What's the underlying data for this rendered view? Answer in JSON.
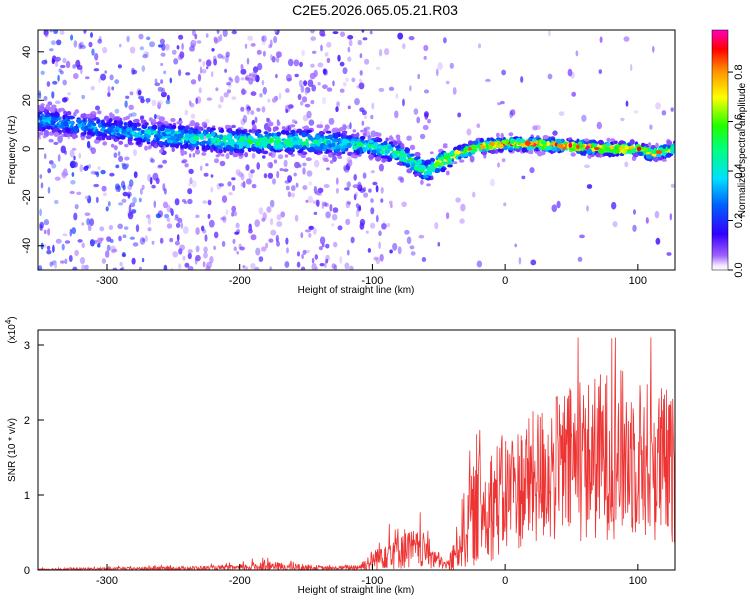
{
  "title": "C2E5.2026.065.05.21.R03",
  "chart_data": [
    {
      "type": "heatmap",
      "title": "C2E5.2026.065.05.21.R03",
      "xlabel": "Height of straight line (km)",
      "ylabel": "Frequency (Hz)",
      "xlim": [
        -352,
        128
      ],
      "ylim": [
        -50,
        49
      ],
      "xticks": [
        -300,
        -200,
        -100,
        0,
        100
      ],
      "xtick_labels": [
        "-300",
        "-200",
        "-100",
        "0",
        "100"
      ],
      "yticks": [
        40,
        20,
        0,
        -20,
        -40
      ],
      "ytick_labels": [
        "40",
        "20",
        "0",
        "-20",
        "-40"
      ],
      "colorbar": {
        "label": "Normalized spectral amplitude",
        "range": [
          0,
          0.97
        ],
        "ticks": [
          0.0,
          0.2,
          0.4,
          0.6,
          0.8
        ],
        "tick_labels": [
          "0.0",
          "0.2",
          "0.4",
          "0.6",
          "0.8"
        ],
        "colormap": [
          "#ffffff",
          "#7b00ff",
          "#0000ff",
          "#00ffff",
          "#00ff00",
          "#ffff00",
          "#ff8000",
          "#ff0000",
          "#ff00ff"
        ]
      },
      "ridge": {
        "x": [
          -350,
          -300,
          -250,
          -200,
          -150,
          -120,
          -100,
          -80,
          -60,
          -50,
          -40,
          -30,
          -20,
          0,
          20,
          50,
          80,
          100,
          110,
          128
        ],
        "freq": [
          12,
          8,
          5,
          3,
          3,
          2,
          1,
          -2,
          -9,
          -6,
          -3,
          -1,
          1,
          2,
          2,
          1,
          0,
          0,
          -2,
          0
        ],
        "amplitude": [
          0.35,
          0.35,
          0.45,
          0.55,
          0.5,
          0.45,
          0.5,
          0.55,
          0.6,
          0.7,
          0.75,
          0.8,
          0.85,
          0.9,
          0.92,
          0.92,
          0.9,
          0.85,
          0.8,
          0.75
        ]
      }
    },
    {
      "type": "line",
      "xlabel": "Height of straight line (km)",
      "ylabel": "SNR (10 * v/v)",
      "y_multiplier": "(x10",
      "y_multiplier_exp": "4",
      "y_multiplier_close": ")",
      "xlim": [
        -352,
        128
      ],
      "ylim": [
        0,
        3.2
      ],
      "xticks": [
        -300,
        -200,
        -100,
        0,
        100
      ],
      "xtick_labels": [
        "-300",
        "-200",
        "-100",
        "0",
        "100"
      ],
      "yticks": [
        0,
        1,
        2,
        3
      ],
      "ytick_labels": [
        "0",
        "1",
        "2",
        "3"
      ],
      "color": "#ee3333",
      "envelope": {
        "x": [
          -352,
          -260,
          -200,
          -185,
          -150,
          -130,
          -110,
          -100,
          -90,
          -80,
          -70,
          -60,
          -50,
          -45,
          -40,
          -35,
          -30,
          -20,
          -10,
          0,
          10,
          20,
          30,
          40,
          50,
          60,
          70,
          80,
          90,
          100,
          110,
          120,
          128
        ],
        "mean": [
          0.01,
          0.02,
          0.03,
          0.05,
          0.03,
          0.02,
          0.04,
          0.12,
          0.25,
          0.3,
          0.28,
          0.25,
          0.12,
          0.06,
          0.12,
          0.35,
          0.6,
          0.8,
          0.9,
          1.0,
          1.1,
          1.2,
          1.3,
          1.35,
          1.4,
          1.45,
          1.5,
          1.55,
          1.55,
          1.5,
          1.45,
          1.4,
          1.3
        ],
        "spread": [
          0.01,
          0.02,
          0.03,
          0.06,
          0.04,
          0.02,
          0.04,
          0.12,
          0.2,
          0.25,
          0.22,
          0.2,
          0.1,
          0.04,
          0.15,
          0.3,
          0.5,
          0.6,
          0.65,
          0.7,
          0.7,
          0.75,
          0.8,
          0.85,
          0.9,
          0.9,
          0.95,
          0.95,
          0.95,
          0.9,
          0.9,
          0.9,
          0.85
        ]
      }
    }
  ]
}
